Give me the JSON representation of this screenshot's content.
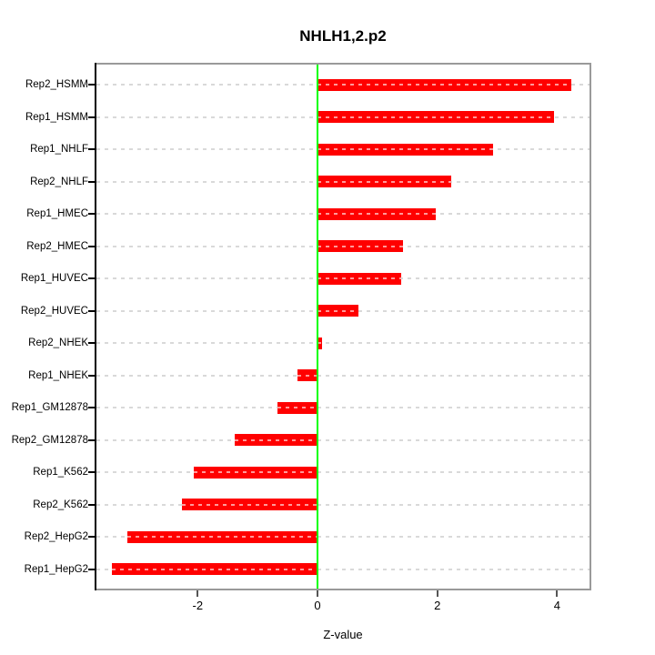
{
  "title": "NHLH1,2.p2",
  "chart_data": {
    "type": "bar",
    "orientation": "horizontal",
    "title": "NHLH1,2.p2",
    "xlabel": "Z-value",
    "ylabel": "",
    "categories": [
      "Rep2_HSMM",
      "Rep1_HSMM",
      "Rep1_NHLF",
      "Rep2_NHLF",
      "Rep1_HMEC",
      "Rep2_HMEC",
      "Rep1_HUVEC",
      "Rep2_HUVEC",
      "Rep2_NHEK",
      "Rep1_NHEK",
      "Rep1_GM12878",
      "Rep2_GM12878",
      "Rep1_K562",
      "Rep2_K562",
      "Rep2_HepG2",
      "Rep1_HepG2"
    ],
    "values": [
      4.24,
      3.95,
      2.93,
      2.23,
      1.98,
      1.43,
      1.4,
      0.69,
      0.08,
      -0.34,
      -0.67,
      -1.38,
      -2.07,
      -2.27,
      -3.18,
      -3.43
    ],
    "xticks": [
      "-2",
      "0",
      "2",
      "4"
    ],
    "xtick_values": [
      -2,
      0,
      2,
      4
    ],
    "xlim": [
      -3.69,
      4.54
    ],
    "grid": "dashed horizontal line per category row",
    "legend": "none",
    "bar_color": "#ff0000",
    "zero_line_color": "#00ff00",
    "grid_color": "#d9d9d9",
    "box_color": "#9a9a9a",
    "text_color": "#000000"
  }
}
